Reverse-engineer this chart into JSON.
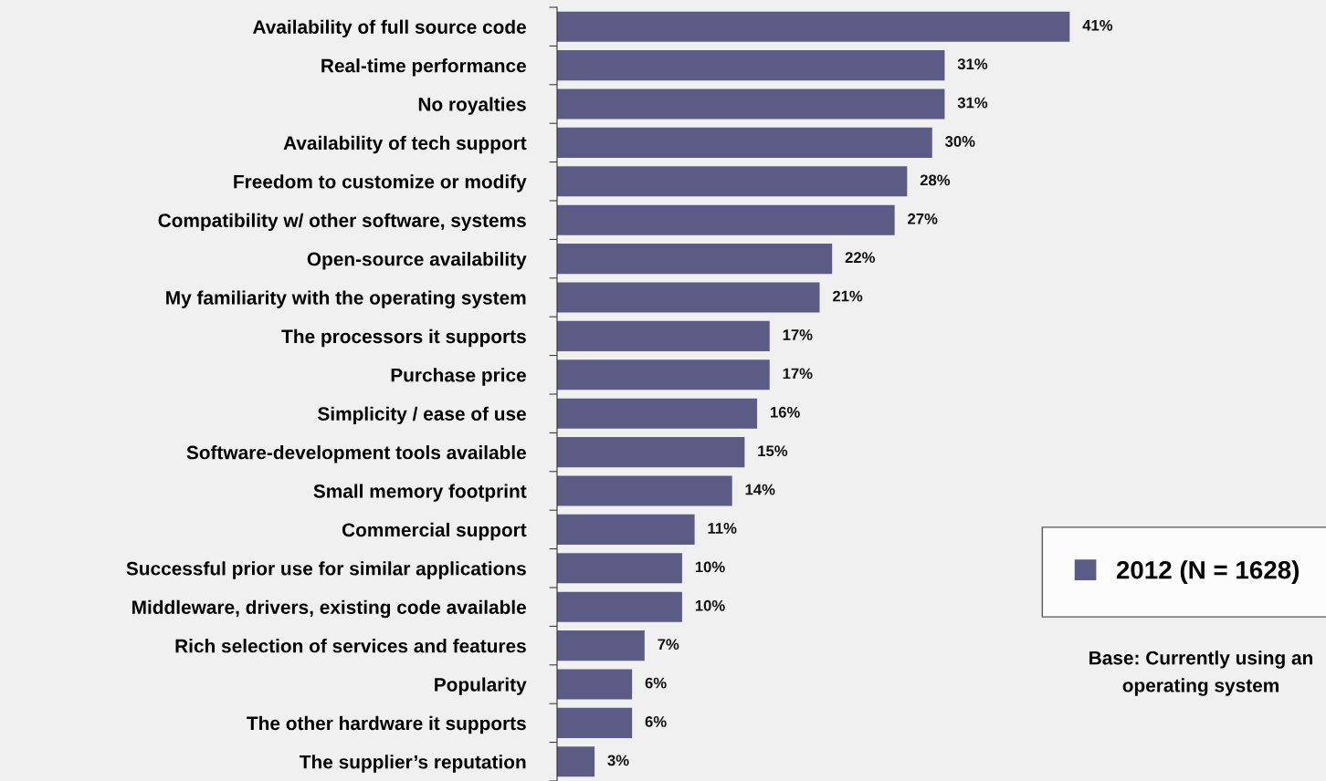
{
  "chart_data": {
    "type": "bar",
    "orientation": "horizontal",
    "categories": [
      "Availability of full source code",
      "Real-time performance",
      "No royalties",
      "Availability of tech support",
      "Freedom to customize or modify",
      "Compatibility w/ other software, systems",
      "Open-source availability",
      "My familiarity with the operating system",
      "The processors it supports",
      "Purchase price",
      "Simplicity / ease of use",
      "Software-development tools available",
      "Small memory footprint",
      "Commercial support",
      "Successful prior use for similar applications",
      "Middleware, drivers, existing code available",
      "Rich selection of services and features",
      "Popularity",
      "The other hardware it supports",
      "The supplier’s reputation"
    ],
    "series": [
      {
        "name": "2012 (N = 1628)",
        "color": "#5b5b86",
        "values": [
          41,
          31,
          31,
          30,
          28,
          27,
          22,
          21,
          17,
          17,
          16,
          15,
          14,
          11,
          10,
          10,
          7,
          6,
          6,
          3
        ],
        "value_labels": [
          "41%",
          "31%",
          "31%",
          "30%",
          "28%",
          "27%",
          "22%",
          "21%",
          "17%",
          "17%",
          "16%",
          "15%",
          "14%",
          "11%",
          "10%",
          "10%",
          "7%",
          "6%",
          "6%",
          "3%"
        ]
      }
    ],
    "legend": "bottom right",
    "grid": false,
    "annotations": [
      "Base: Currently using an operating system"
    ]
  }
}
